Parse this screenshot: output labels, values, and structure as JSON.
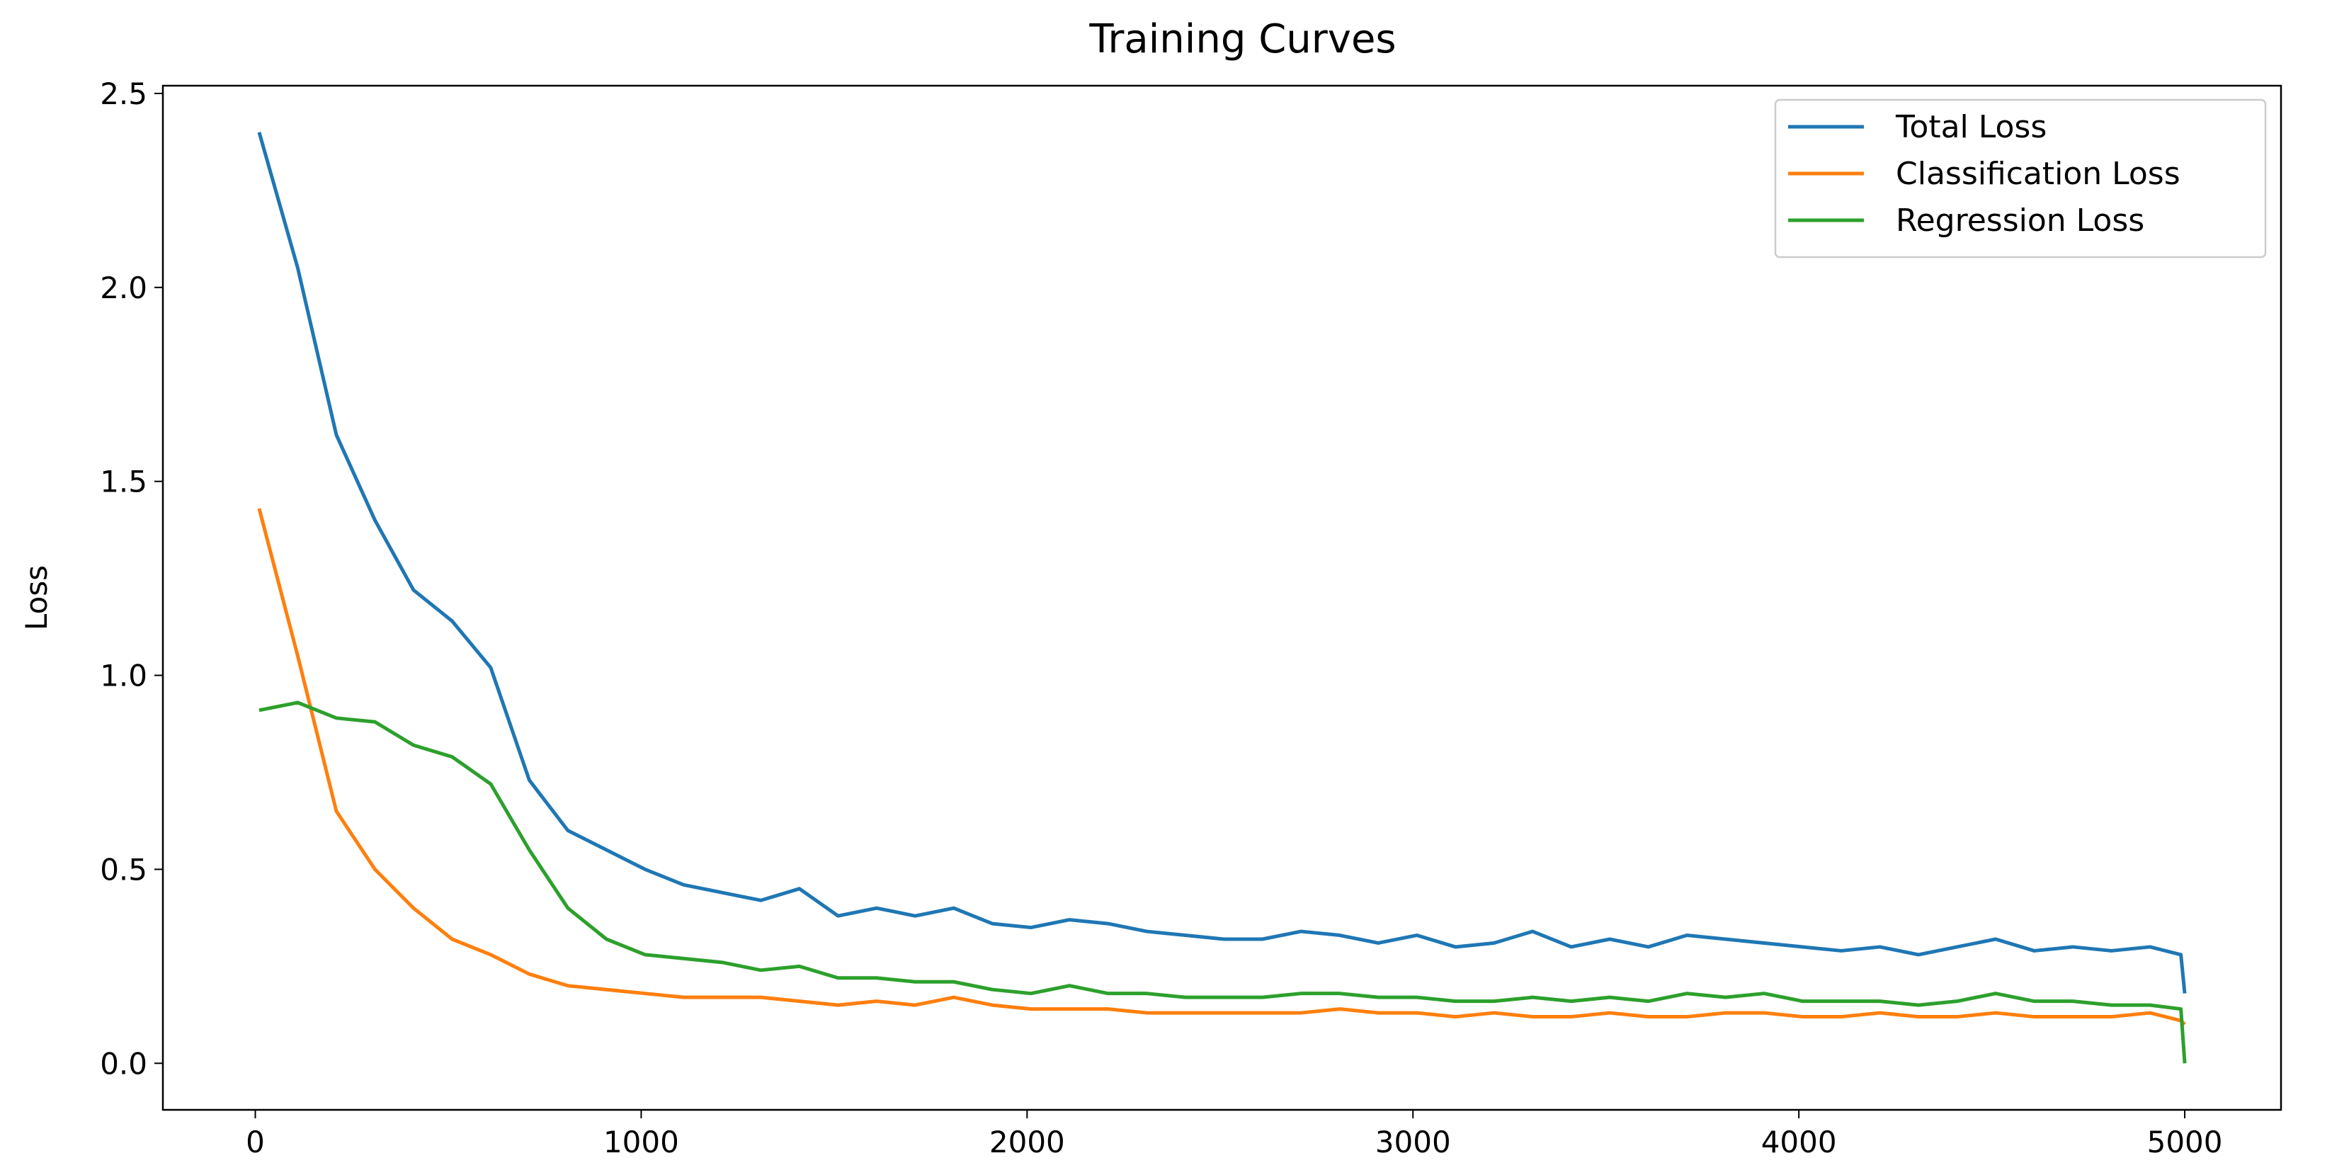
{
  "chart_data": {
    "type": "line",
    "title": "Training Curves",
    "y_label": "Loss",
    "x": [
      10,
      110,
      210,
      310,
      410,
      510,
      610,
      710,
      810,
      910,
      1010,
      1110,
      1210,
      1310,
      1410,
      1510,
      1610,
      1710,
      1810,
      1910,
      2010,
      2110,
      2210,
      2310,
      2410,
      2510,
      2610,
      2710,
      2810,
      2910,
      3010,
      3110,
      3210,
      3310,
      3410,
      3510,
      3610,
      3710,
      3810,
      3910,
      4010,
      4110,
      4210,
      4310,
      4410,
      4510,
      4610,
      4710,
      4810,
      4910,
      4990,
      5000
    ],
    "series": [
      {
        "name": "Total Loss",
        "color": "#1f77b4",
        "values": [
          2.4,
          2.05,
          1.62,
          1.4,
          1.22,
          1.14,
          1.02,
          0.73,
          0.6,
          0.55,
          0.5,
          0.46,
          0.44,
          0.42,
          0.45,
          0.38,
          0.4,
          0.38,
          0.4,
          0.36,
          0.35,
          0.37,
          0.36,
          0.34,
          0.33,
          0.32,
          0.32,
          0.34,
          0.33,
          0.31,
          0.33,
          0.3,
          0.31,
          0.34,
          0.3,
          0.32,
          0.3,
          0.33,
          0.32,
          0.31,
          0.3,
          0.29,
          0.3,
          0.28,
          0.3,
          0.32,
          0.29,
          0.3,
          0.29,
          0.3,
          0.28,
          0.18
        ]
      },
      {
        "name": "Classification Loss",
        "color": "#ff7f0e",
        "values": [
          1.43,
          1.05,
          0.65,
          0.5,
          0.4,
          0.32,
          0.28,
          0.23,
          0.2,
          0.19,
          0.18,
          0.17,
          0.17,
          0.17,
          0.16,
          0.15,
          0.16,
          0.15,
          0.17,
          0.15,
          0.14,
          0.14,
          0.14,
          0.13,
          0.13,
          0.13,
          0.13,
          0.13,
          0.14,
          0.13,
          0.13,
          0.12,
          0.13,
          0.12,
          0.12,
          0.13,
          0.12,
          0.12,
          0.13,
          0.13,
          0.12,
          0.12,
          0.13,
          0.12,
          0.12,
          0.13,
          0.12,
          0.12,
          0.12,
          0.13,
          0.11,
          0.1
        ]
      },
      {
        "name": "Regression Loss",
        "color": "#2ca02c",
        "values": [
          0.91,
          0.93,
          0.89,
          0.88,
          0.82,
          0.79,
          0.72,
          0.55,
          0.4,
          0.32,
          0.28,
          0.27,
          0.26,
          0.24,
          0.25,
          0.22,
          0.22,
          0.21,
          0.21,
          0.19,
          0.18,
          0.2,
          0.18,
          0.18,
          0.17,
          0.17,
          0.17,
          0.18,
          0.18,
          0.17,
          0.17,
          0.16,
          0.16,
          0.17,
          0.16,
          0.17,
          0.16,
          0.18,
          0.17,
          0.18,
          0.16,
          0.16,
          0.16,
          0.15,
          0.16,
          0.18,
          0.16,
          0.16,
          0.15,
          0.15,
          0.14,
          0.0
        ]
      }
    ],
    "xlim": [
      -239.5,
      5249.5
    ],
    "ylim": [
      -0.12,
      2.52
    ],
    "xticks": [
      0,
      1000,
      2000,
      3000,
      4000,
      5000
    ],
    "yticks": [
      {
        "value": 0,
        "label": "0.0"
      },
      0.5,
      {
        "value": 1,
        "label": "1.0"
      },
      1.5,
      {
        "value": 2,
        "label": "2.0"
      },
      2.5
    ],
    "legend": "upper right",
    "grid": false
  }
}
